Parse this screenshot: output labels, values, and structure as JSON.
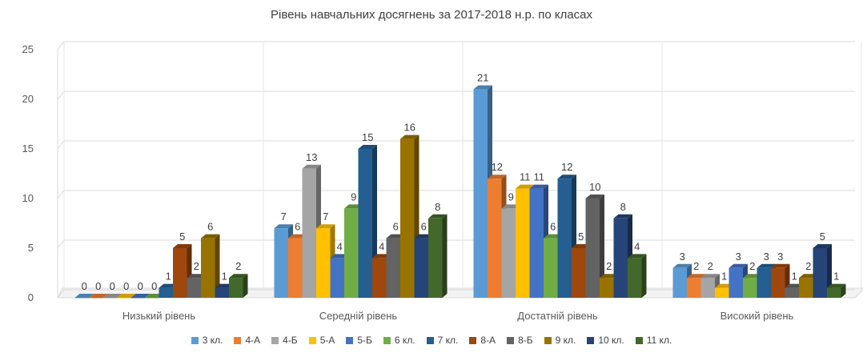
{
  "chart_data": {
    "type": "bar",
    "title": "Рівень навчальних досягнень за 2017-2018 н.р. по класах",
    "xlabel": "",
    "ylabel": "",
    "ylim": [
      0,
      25
    ],
    "yticks": [
      0,
      5,
      10,
      15,
      20,
      25
    ],
    "grid": true,
    "legend_position": "bottom",
    "categories": [
      "Низький рівень",
      "Середній рівень",
      "Достатній рівень",
      "Високий рівень"
    ],
    "series": [
      {
        "name": "3 кл.",
        "color": "#5B9BD5",
        "values": [
          0,
          7,
          21,
          3
        ]
      },
      {
        "name": "4-А",
        "color": "#ED7D31",
        "values": [
          0,
          6,
          12,
          2
        ]
      },
      {
        "name": "4-Б",
        "color": "#A5A5A5",
        "values": [
          0,
          13,
          9,
          2
        ]
      },
      {
        "name": "5-А",
        "color": "#FFC000",
        "values": [
          0,
          7,
          11,
          1
        ]
      },
      {
        "name": "5-Б",
        "color": "#4472C4",
        "values": [
          0,
          4,
          11,
          3
        ]
      },
      {
        "name": "6 кл.",
        "color": "#70AD47",
        "values": [
          0,
          9,
          6,
          2
        ]
      },
      {
        "name": "7 кл.",
        "color": "#255E91",
        "values": [
          1,
          15,
          12,
          3
        ]
      },
      {
        "name": "8-А",
        "color": "#9E480E",
        "values": [
          5,
          4,
          5,
          3
        ]
      },
      {
        "name": "8-Б",
        "color": "#636363",
        "values": [
          2,
          6,
          10,
          1
        ]
      },
      {
        "name": "9 кл.",
        "color": "#997300",
        "values": [
          6,
          16,
          2,
          2
        ]
      },
      {
        "name": "10 кл.",
        "color": "#264478",
        "values": [
          1,
          6,
          8,
          5
        ]
      },
      {
        "name": "11 кл.",
        "color": "#43682B",
        "values": [
          2,
          8,
          4,
          1
        ]
      }
    ]
  }
}
